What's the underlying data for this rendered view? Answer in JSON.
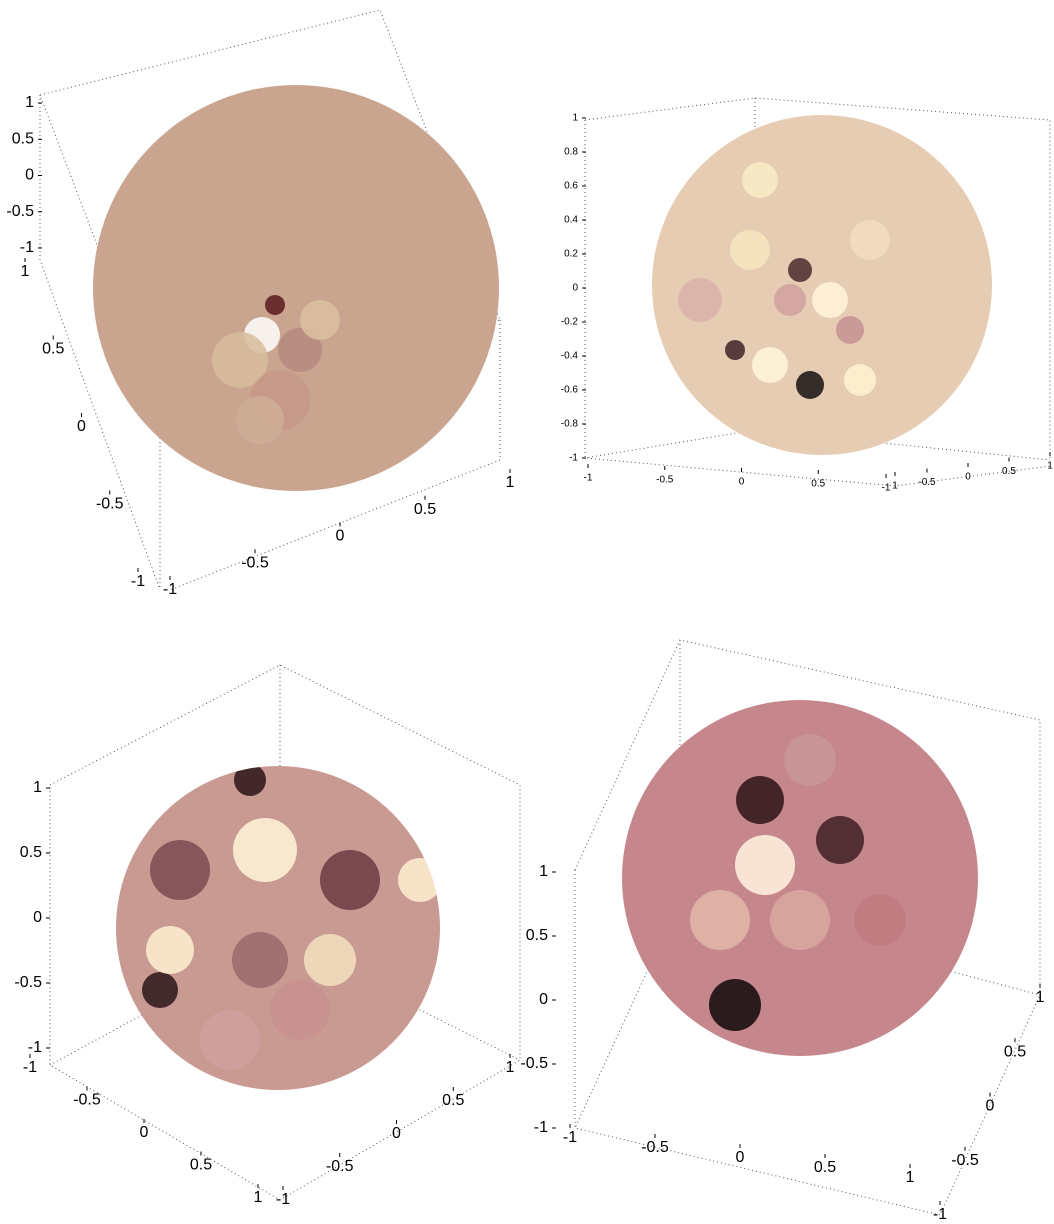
{
  "chart_data": [
    {
      "type": "sphere",
      "color": "#c9a48f",
      "xlim": [
        -1,
        1
      ],
      "ylim": [
        -1,
        1
      ],
      "zlim": [
        -1,
        1
      ],
      "xticks": [
        -1,
        -0.5,
        0,
        0.5,
        1
      ],
      "yticks": [
        -1,
        -0.5,
        0,
        0.5,
        1
      ],
      "zticks": [
        -1,
        -0.5,
        0,
        0.5,
        1
      ]
    },
    {
      "type": "sphere",
      "color": "#e6ccb2",
      "xlim": [
        -1,
        1
      ],
      "ylim": [
        -1,
        1
      ],
      "zlim": [
        -1,
        1
      ],
      "xticks": [
        -1,
        -0.5,
        0,
        0.5,
        1
      ],
      "yticks": [
        -1,
        -0.5,
        0,
        0.5,
        1
      ],
      "zticks": [
        -1,
        -0.8,
        -0.6,
        -0.4,
        -0.2,
        0,
        0.2,
        0.4,
        0.6,
        0.8,
        1
      ]
    },
    {
      "type": "sphere",
      "color": "#c89a92",
      "xlim": [
        -1,
        1
      ],
      "ylim": [
        -1,
        1
      ],
      "zlim": [
        -1,
        1
      ],
      "xticks": [
        -1,
        -0.5,
        0,
        0.5,
        1
      ],
      "yticks": [
        -1,
        -0.5,
        0,
        0.5,
        1
      ],
      "zticks": [
        -1,
        -0.5,
        0,
        0.5,
        1
      ]
    },
    {
      "type": "sphere",
      "color": "#c6878c",
      "xlim": [
        -1,
        1
      ],
      "ylim": [
        -1,
        1
      ],
      "zlim": [
        -1,
        1
      ],
      "xticks": [
        -1,
        -0.5,
        0,
        0.5,
        1
      ],
      "yticks": [
        -1,
        -0.5,
        0,
        0.5,
        1
      ],
      "zticks": [
        -1,
        -0.5,
        0,
        0.5,
        1
      ]
    }
  ]
}
